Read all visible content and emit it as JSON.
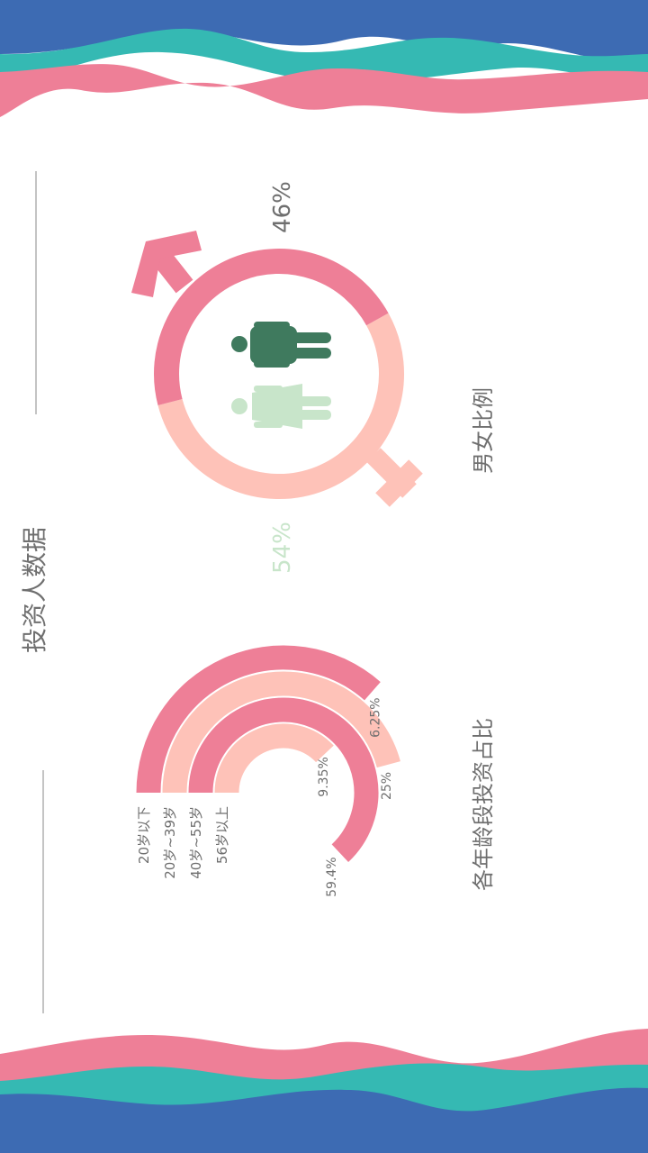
{
  "page": {
    "title": "投资人数据"
  },
  "colors": {
    "blue": "#3d6bb3",
    "teal": "#35b9b3",
    "pink": "#ee7f97",
    "light_pink": "#fec2b8",
    "dark_green": "#3f7a5e",
    "light_green": "#c8e5ca",
    "text_gray": "#6f6f6f"
  },
  "chart_data": [
    {
      "type": "pie",
      "title": "男女比例",
      "categories": [
        "male",
        "female"
      ],
      "values": [
        46,
        54
      ],
      "value_labels": [
        "46%",
        "54%"
      ],
      "icons": [
        "male-figure-icon",
        "female-figure-icon",
        "male-symbol-icon",
        "female-symbol-icon"
      ]
    },
    {
      "type": "bar",
      "subtype": "radial",
      "title": "各年龄段投资占比",
      "categories": [
        "20岁以下",
        "20岁~39岁",
        "40岁~55岁",
        "56岁以上"
      ],
      "values": [
        6.25,
        25,
        59.4,
        9.35
      ],
      "value_labels": [
        "6.25%",
        "25%",
        "59.4%",
        "9.35%"
      ]
    }
  ]
}
